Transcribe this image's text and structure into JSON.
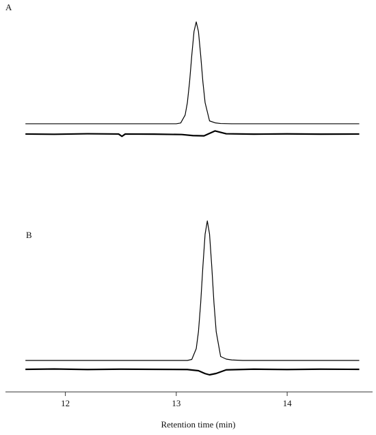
{
  "chart_data": {
    "type": "line",
    "xlabel": "Retention time (min)",
    "xlim": [
      11.46,
      14.77
    ],
    "xticks": [
      12,
      13,
      14
    ],
    "panels": [
      {
        "label": "A",
        "ylim": [
          0,
          100
        ],
        "series": [
          {
            "color": "#000000",
            "x": [
              11.64,
              11.8,
              12.1,
              12.4,
              12.7,
              12.9,
              13.0,
              13.04,
              13.08,
              13.1,
              13.12,
              13.14,
              13.16,
              13.18,
              13.2,
              13.22,
              13.24,
              13.26,
              13.3,
              13.35,
              13.4,
              13.5,
              13.8,
              14.1,
              14.4,
              14.65
            ],
            "values": [
              15.3,
              15.3,
              15.3,
              15.3,
              15.3,
              15.3,
              15.3,
              15.9,
              22.0,
              31.5,
              47.5,
              68.1,
              86.3,
              93.7,
              86.3,
              68.1,
              47.5,
              31.5,
              17.5,
              16.0,
              15.5,
              15.3,
              15.3,
              15.3,
              15.3,
              15.3
            ]
          },
          {
            "color": "#000000",
            "x": [
              11.64,
              11.9,
              12.2,
              12.48,
              12.51,
              12.54,
              12.8,
              13.05,
              13.15,
              13.25,
              13.35,
              13.45,
              13.7,
              14.0,
              14.3,
              14.65
            ],
            "values": [
              7.4,
              7.2,
              7.6,
              7.4,
              5.6,
              7.4,
              7.3,
              7.0,
              6.2,
              6.0,
              9.8,
              7.6,
              7.3,
              7.5,
              7.3,
              7.4
            ]
          }
        ]
      },
      {
        "label": "B",
        "ylim": [
          0,
          100
        ],
        "series": [
          {
            "color": "#000000",
            "x": [
              11.64,
              11.8,
              12.1,
              12.4,
              12.7,
              13.0,
              13.1,
              13.14,
              13.18,
              13.2,
              13.22,
              13.24,
              13.26,
              13.28,
              13.3,
              13.32,
              13.34,
              13.36,
              13.4,
              13.45,
              13.5,
              13.6,
              13.8,
              14.1,
              14.4,
              14.65
            ],
            "values": [
              13.2,
              13.2,
              13.2,
              13.2,
              13.2,
              13.2,
              13.2,
              13.8,
              20.1,
              30.0,
              46.7,
              68.2,
              87.1,
              94.8,
              87.1,
              68.2,
              46.7,
              30.0,
              15.5,
              14.0,
              13.5,
              13.2,
              13.2,
              13.2,
              13.2,
              13.2
            ]
          },
          {
            "color": "#000000",
            "x": [
              11.64,
              11.9,
              12.2,
              12.5,
              12.8,
              13.1,
              13.2,
              13.26,
              13.3,
              13.36,
              13.45,
              13.7,
              14.0,
              14.3,
              14.65
            ],
            "values": [
              8.0,
              8.2,
              7.9,
              8.1,
              8.0,
              7.9,
              7.2,
              5.5,
              4.8,
              5.6,
              7.7,
              8.1,
              7.9,
              8.1,
              8.0
            ]
          }
        ]
      }
    ]
  }
}
